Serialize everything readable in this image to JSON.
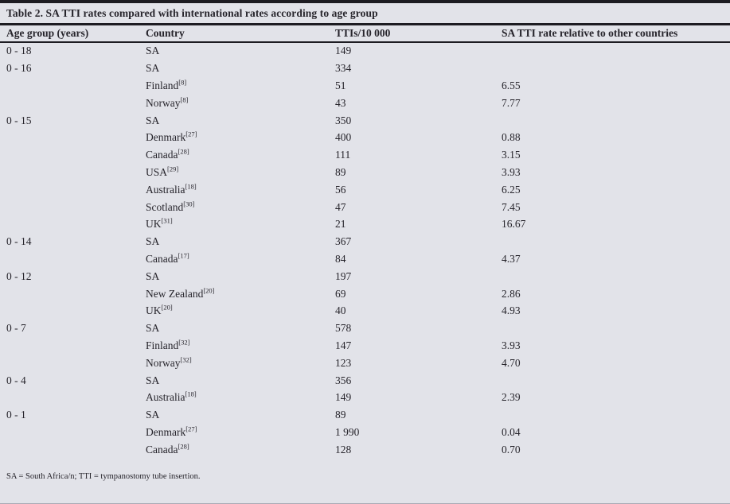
{
  "table": {
    "title": "Table 2. SA TTI rates compared with international rates according to age group",
    "columns": [
      "Age group (years)",
      "Country",
      "TTIs/10 000",
      "SA TTI rate relative to other countries"
    ],
    "rows": [
      {
        "age": "0 - 18",
        "country": "SA",
        "ref": "",
        "tti": "149",
        "ratio": ""
      },
      {
        "age": "0 - 16",
        "country": "SA",
        "ref": "",
        "tti": "334",
        "ratio": ""
      },
      {
        "age": "",
        "country": "Finland",
        "ref": "[8]",
        "tti": "51",
        "ratio": "6.55"
      },
      {
        "age": "",
        "country": "Norway",
        "ref": "[8]",
        "tti": "43",
        "ratio": "7.77"
      },
      {
        "age": "0 - 15",
        "country": "SA",
        "ref": "",
        "tti": "350",
        "ratio": ""
      },
      {
        "age": "",
        "country": "Denmark",
        "ref": "[27]",
        "tti": "400",
        "ratio": "0.88"
      },
      {
        "age": "",
        "country": "Canada",
        "ref": "[28]",
        "tti": "111",
        "ratio": "3.15"
      },
      {
        "age": "",
        "country": "USA",
        "ref": "[29]",
        "tti": "89",
        "ratio": "3.93"
      },
      {
        "age": "",
        "country": "Australia",
        "ref": "[18]",
        "tti": "56",
        "ratio": "6.25"
      },
      {
        "age": "",
        "country": "Scotland",
        "ref": "[30]",
        "tti": "47",
        "ratio": "7.45"
      },
      {
        "age": "",
        "country": "UK",
        "ref": "[31]",
        "tti": "21",
        "ratio": "16.67"
      },
      {
        "age": "0 - 14",
        "country": "SA",
        "ref": "",
        "tti": "367",
        "ratio": ""
      },
      {
        "age": "",
        "country": "Canada",
        "ref": "[17]",
        "tti": "84",
        "ratio": "4.37"
      },
      {
        "age": "0 - 12",
        "country": "SA",
        "ref": "",
        "tti": "197",
        "ratio": ""
      },
      {
        "age": "",
        "country": "New Zealand",
        "ref": "[20]",
        "tti": "69",
        "ratio": "2.86"
      },
      {
        "age": "",
        "country": "UK",
        "ref": "[20]",
        "tti": "40",
        "ratio": "4.93"
      },
      {
        "age": "0 - 7",
        "country": "SA",
        "ref": "",
        "tti": "578",
        "ratio": ""
      },
      {
        "age": "",
        "country": "Finland",
        "ref": "[32]",
        "tti": "147",
        "ratio": "3.93"
      },
      {
        "age": "",
        "country": "Norway",
        "ref": "[32]",
        "tti": "123",
        "ratio": "4.70"
      },
      {
        "age": "0 - 4",
        "country": "SA",
        "ref": "",
        "tti": "356",
        "ratio": ""
      },
      {
        "age": "",
        "country": "Australia",
        "ref": "[18]",
        "tti": "149",
        "ratio": "2.39"
      },
      {
        "age": "0 - 1",
        "country": "SA",
        "ref": "",
        "tti": "89",
        "ratio": ""
      },
      {
        "age": "",
        "country": "Denmark",
        "ref": "[27]",
        "tti": "1 990",
        "ratio": "0.04"
      },
      {
        "age": "",
        "country": "Canada",
        "ref": "[28]",
        "tti": "128",
        "ratio": "0.70"
      }
    ],
    "footnote": "SA = South Africa/n; TTI = tympanostomy tube insertion."
  },
  "colors": {
    "background": "#e2e3e9",
    "text": "#26242b",
    "rule": "#1d1c22"
  }
}
